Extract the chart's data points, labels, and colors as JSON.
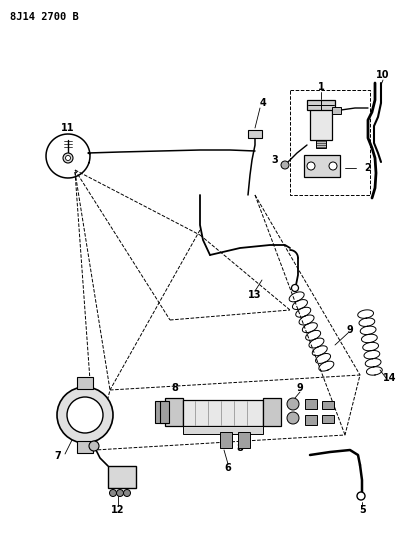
{
  "title": "8J14 2700 B",
  "bg_color": "#ffffff",
  "fig_width": 4.02,
  "fig_height": 5.33,
  "dpi": 100
}
